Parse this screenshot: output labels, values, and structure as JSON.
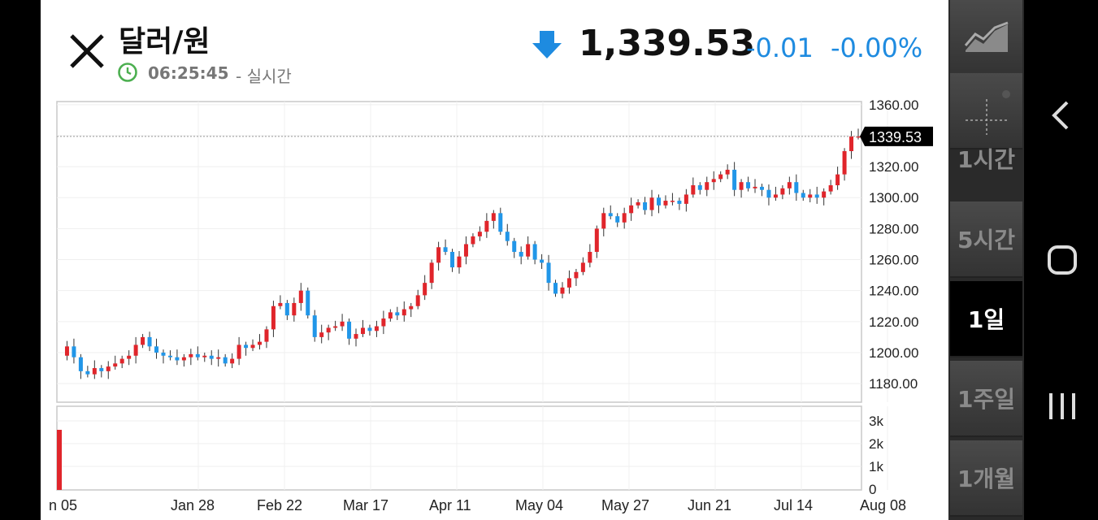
{
  "header": {
    "title": "달러/원",
    "time": "06:25:45",
    "realtime_label": "- 실시간",
    "price": "1,339.53",
    "change": "-0.01",
    "change_pct": "-0.00%",
    "down_color": "#1e8be0"
  },
  "chart_data": {
    "type": "candlestick",
    "y_ticks": [
      "1360.00",
      "1340.00",
      "1320.00",
      "1300.00",
      "1280.00",
      "1260.00",
      "1240.00",
      "1220.00",
      "1200.00",
      "1180.00"
    ],
    "ylim": [
      1168,
      1362
    ],
    "last_price": "1339.53",
    "volume_ticks": [
      "3k",
      "2k",
      "1k",
      "0"
    ],
    "x_labels": [
      "n 05",
      "Jan 28",
      "Feb 22",
      "Mar 17",
      "Apr 11",
      "May 04",
      "May 27",
      "Jun 21",
      "Jul 14",
      "Aug 08"
    ],
    "grid": true,
    "up_color": "#e0252b",
    "down_color": "#2196e8",
    "close_path": [
      1198,
      1204,
      1197,
      1188,
      1186,
      1190,
      1188,
      1191,
      1193,
      1196,
      1198,
      1205,
      1210,
      1204,
      1200,
      1198,
      1197,
      1195,
      1197,
      1199,
      1197,
      1198,
      1196,
      1197,
      1193,
      1196,
      1205,
      1203,
      1205,
      1207,
      1215,
      1230,
      1232,
      1224,
      1232,
      1240,
      1224,
      1210,
      1213,
      1216,
      1217,
      1220,
      1209,
      1212,
      1216,
      1214,
      1217,
      1222,
      1226,
      1224,
      1228,
      1230,
      1237,
      1245,
      1258,
      1268,
      1265,
      1255,
      1262,
      1270,
      1275,
      1278,
      1285,
      1290,
      1278,
      1272,
      1265,
      1262,
      1270,
      1260,
      1258,
      1245,
      1238,
      1242,
      1248,
      1252,
      1258,
      1265,
      1280,
      1290,
      1288,
      1284,
      1290,
      1295,
      1297,
      1292,
      1300,
      1295,
      1298,
      1298,
      1296,
      1302,
      1308,
      1305,
      1310,
      1312,
      1315,
      1318,
      1305,
      1310,
      1306,
      1307,
      1305,
      1300,
      1302,
      1306,
      1310,
      1303,
      1300,
      1302,
      1300,
      1304,
      1308,
      1315,
      1330,
      1339.53,
      1339.53
    ]
  },
  "rail": {
    "buttons": [
      "1시간",
      "5시간",
      "1일",
      "1주일",
      "1개월"
    ],
    "active": "1일"
  }
}
